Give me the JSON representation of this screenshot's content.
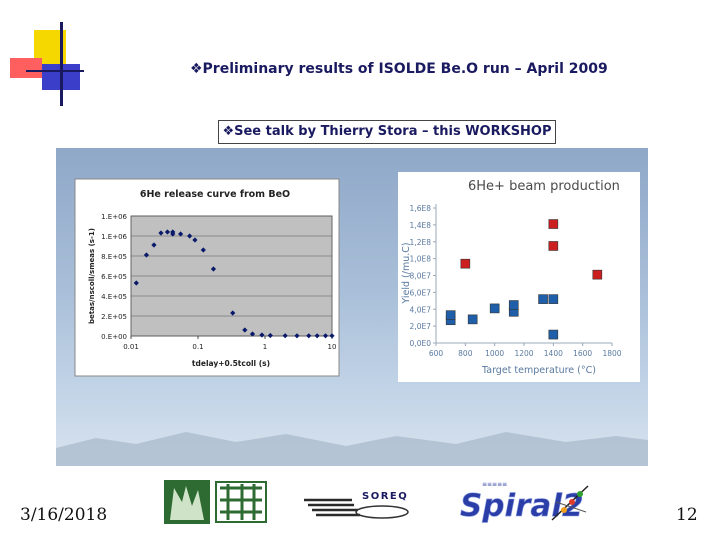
{
  "slide": {
    "title": "❖Preliminary results of ISOLDE Be.O run – April 2009",
    "subtitle": "❖See talk by Thierry Stora – this WORKSHOP",
    "date": "3/16/2018",
    "page": "12"
  },
  "logos": {
    "soreq": "SOREQ",
    "spiral2": "Spiral2",
    "spiral2_bar": "≡≡≡≡≡"
  },
  "colors": {
    "title": "#1a1a60",
    "diamond": "#0a1a6a",
    "plot_bg": "#c0c0c0",
    "blue_square": "#1f5ea8",
    "red_square": "#cc1f1f",
    "axis_text2": "#5a7aa0"
  },
  "chart_data": [
    {
      "type": "scatter",
      "title": "6He release curve from BeO",
      "xlabel": "tdelay+0.5tcoll (s)",
      "ylabel": "betas/nscoll/smeas (s-1)",
      "x_scale": "log",
      "xlim": [
        0.01,
        10
      ],
      "ylim": [
        0,
        1200000
      ],
      "x_ticks": [
        "0.01",
        "0.1",
        "1",
        "10"
      ],
      "y_ticks": [
        "0.E+00",
        "2.E+05",
        "4.E+05",
        "6.E+05",
        "8.E+05",
        "1.E+06",
        "1.E+06"
      ],
      "grid": "horizontal",
      "marker": "diamond",
      "points": [
        [
          0.012,
          530000
        ],
        [
          0.017,
          810000
        ],
        [
          0.022,
          910000
        ],
        [
          0.028,
          1030000
        ],
        [
          0.035,
          1040000
        ],
        [
          0.042,
          1040000
        ],
        [
          0.042,
          1020000
        ],
        [
          0.055,
          1020000
        ],
        [
          0.075,
          1000000
        ],
        [
          0.09,
          960000
        ],
        [
          0.12,
          860000
        ],
        [
          0.17,
          670000
        ],
        [
          0.33,
          230000
        ],
        [
          0.5,
          60000
        ],
        [
          0.65,
          20000
        ],
        [
          0.9,
          10000
        ],
        [
          1.2,
          5000
        ],
        [
          2.0,
          3000
        ],
        [
          3.0,
          2000
        ],
        [
          4.5,
          2000
        ],
        [
          6.0,
          2000
        ],
        [
          8.0,
          2000
        ],
        [
          10.0,
          2000
        ]
      ]
    },
    {
      "type": "scatter",
      "title": "6He+  beam production",
      "xlabel": "Target temperature (°C)",
      "ylabel": "Yield (/mu.C)",
      "xlim": [
        600,
        1800
      ],
      "ylim": [
        0,
        160000000
      ],
      "x_ticks": [
        "600",
        "800",
        "1000",
        "1200",
        "1400",
        "1600",
        "1800"
      ],
      "y_ticks": [
        "0,0E0",
        "2,0E7",
        "4,0E7",
        "6,0E7",
        "8,0E7",
        "1,0E8",
        "1,2E8",
        "1,4E8",
        "1,6E8"
      ],
      "grid": "none",
      "marker": "square",
      "series": [
        {
          "color": "#1f5ea8",
          "points": [
            [
              700,
              27000000
            ],
            [
              700,
              33000000
            ],
            [
              850,
              28000000
            ],
            [
              1000,
              41000000
            ],
            [
              1130,
              37000000
            ],
            [
              1130,
              45000000
            ],
            [
              1330,
              52000000
            ],
            [
              1400,
              52000000
            ],
            [
              1400,
              10000000
            ]
          ]
        },
        {
          "color": "#cc1f1f",
          "points": [
            [
              800,
              94000000
            ],
            [
              1400,
              141000000
            ],
            [
              1400,
              115000000
            ],
            [
              1700,
              81000000
            ]
          ]
        }
      ]
    }
  ]
}
